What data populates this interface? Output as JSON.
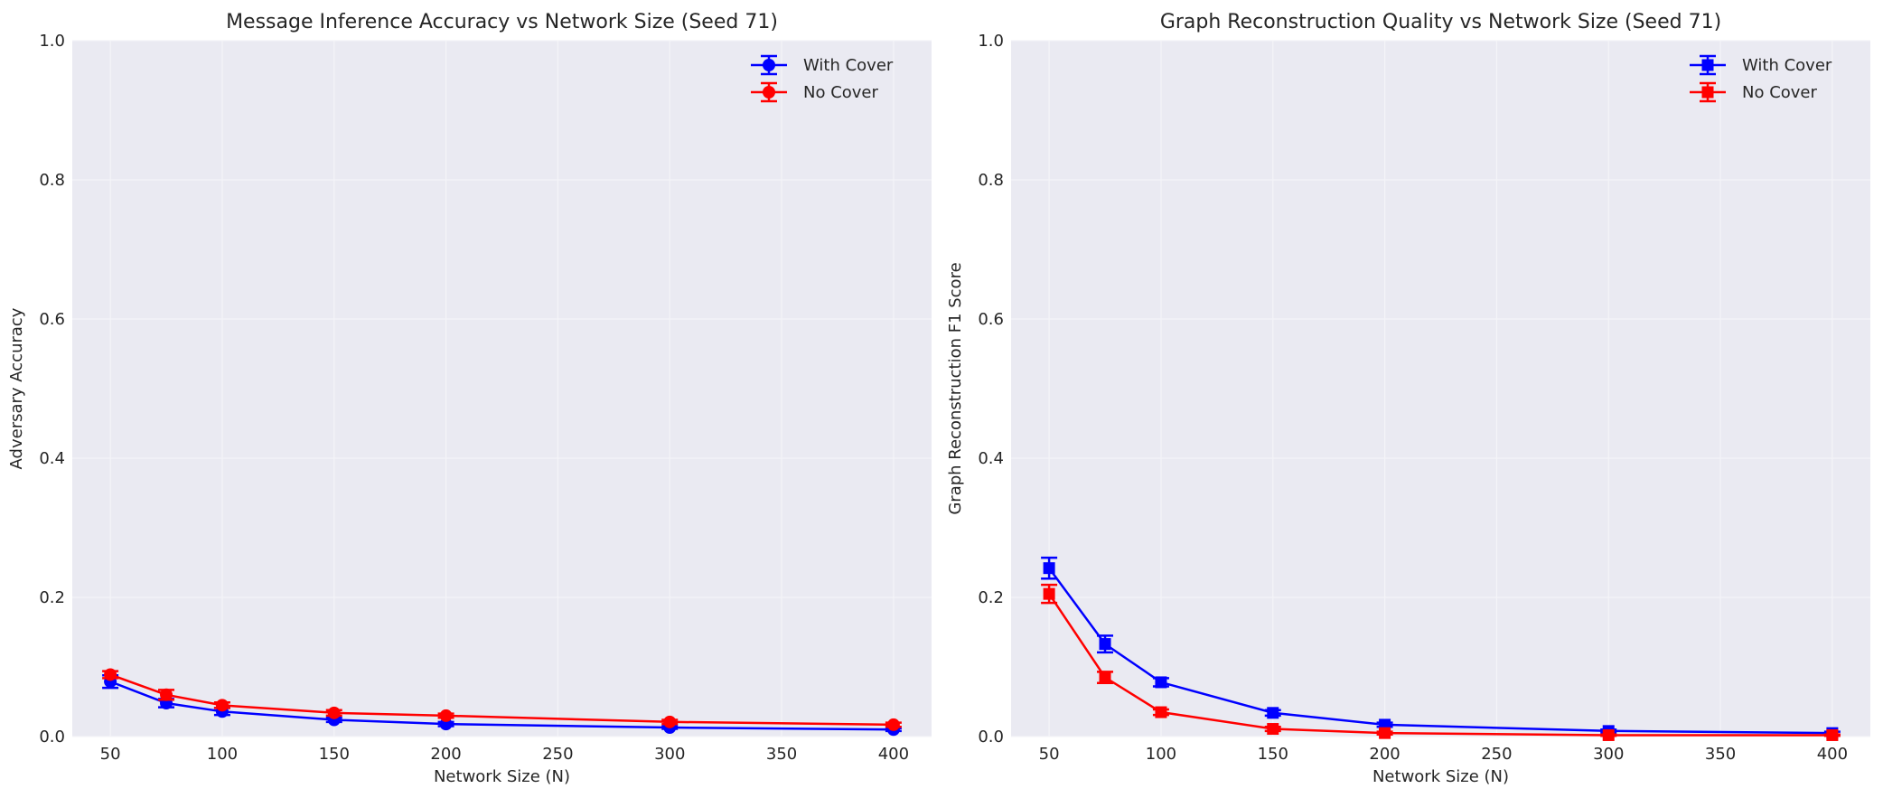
{
  "chart_data": [
    {
      "type": "line",
      "title": "Message Inference Accuracy vs Network Size (Seed 71)",
      "xlabel": "Network Size (N)",
      "ylabel": "Adversary Accuracy",
      "xlim": [
        33,
        417
      ],
      "ylim": [
        0,
        1.0
      ],
      "xticks": [
        50,
        100,
        150,
        200,
        250,
        300,
        350,
        400
      ],
      "yticks": [
        0.0,
        0.2,
        0.4,
        0.6,
        0.8,
        1.0
      ],
      "grid": true,
      "legend_position": "top-right",
      "x": [
        50,
        75,
        100,
        150,
        200,
        300,
        400
      ],
      "series": [
        {
          "name": "With Cover",
          "color": "#0000ff",
          "marker": "circle",
          "values": [
            0.079,
            0.048,
            0.036,
            0.024,
            0.018,
            0.013,
            0.01
          ],
          "errors": [
            0.009,
            0.006,
            0.005,
            0.003,
            0.003,
            0.002,
            0.002
          ]
        },
        {
          "name": "No Cover",
          "color": "#ff0000",
          "marker": "circle",
          "values": [
            0.089,
            0.06,
            0.045,
            0.034,
            0.03,
            0.021,
            0.017
          ],
          "errors": [
            0.005,
            0.007,
            0.004,
            0.004,
            0.003,
            0.003,
            0.003
          ]
        }
      ]
    },
    {
      "type": "line",
      "title": "Graph Reconstruction Quality vs Network Size (Seed 71)",
      "xlabel": "Network Size (N)",
      "ylabel": "Graph Reconstruction F1 Score",
      "xlim": [
        33,
        417
      ],
      "ylim": [
        0,
        1.0
      ],
      "xticks": [
        50,
        100,
        150,
        200,
        250,
        300,
        350,
        400
      ],
      "yticks": [
        0.0,
        0.2,
        0.4,
        0.6,
        0.8,
        1.0
      ],
      "grid": true,
      "legend_position": "top-right",
      "x": [
        50,
        75,
        100,
        150,
        200,
        300,
        400
      ],
      "series": [
        {
          "name": "With Cover",
          "color": "#0000ff",
          "marker": "square",
          "values": [
            0.242,
            0.133,
            0.078,
            0.034,
            0.017,
            0.008,
            0.005
          ],
          "errors": [
            0.015,
            0.012,
            0.006,
            0.004,
            0.003,
            0.002,
            0.002
          ]
        },
        {
          "name": "No Cover",
          "color": "#ff0000",
          "marker": "square",
          "values": [
            0.205,
            0.085,
            0.035,
            0.011,
            0.005,
            0.002,
            0.002
          ],
          "errors": [
            0.013,
            0.008,
            0.004,
            0.003,
            0.002,
            0.001,
            0.001
          ]
        }
      ]
    }
  ]
}
